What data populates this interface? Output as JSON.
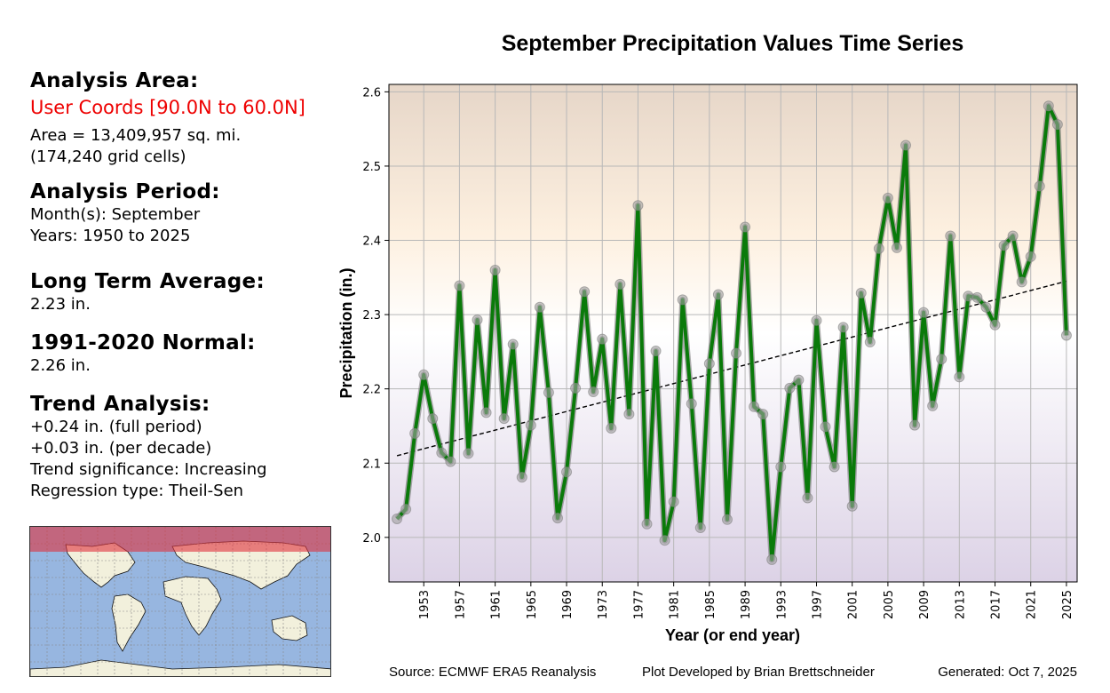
{
  "sidebar": {
    "analysis_area_heading": "Analysis Area:",
    "analysis_area_value": "User Coords [90.0N to 60.0N]",
    "area_line": "Area = 13,409,957 sq. mi.",
    "grid_cells_line": "(174,240 grid cells)",
    "analysis_period_heading": "Analysis Period:",
    "months_line": "Month(s): September",
    "years_line": "Years: 1950 to 2025",
    "long_term_avg_heading": "Long Term Average:",
    "long_term_avg_value": "2.23 in.",
    "normal_heading": "1991-2020 Normal:",
    "normal_value": "2.26 in.",
    "trend_heading": "Trend Analysis:",
    "trend_full": "+0.24 in. (full period)",
    "trend_decade": "+0.03 in. (per decade)",
    "trend_significance": "Trend significance: Increasing",
    "regression_type": "Regression type: Theil-Sen"
  },
  "map": {
    "description": "World map with highlighted region 60N-90N",
    "highlight_color": "#e0606a",
    "ocean_color": "#97b6e0",
    "land_color": "#f2f0dc"
  },
  "footer": {
    "source": "Source: ECMWF ERA5 Reanalysis",
    "developer": "Plot Developed by Brian Brettschneider",
    "generated": "Generated: Oct 7, 2025"
  },
  "colors": {
    "line": "#0a7a0a",
    "marker": "#a0a0a0",
    "trend": "#000000",
    "bg_top": "#e6d6c8",
    "bg_mid_upper": "#fdf0e0",
    "bg_mid": "#ffffff",
    "bg_bottom": "#dcd2e6"
  },
  "chart_data": {
    "type": "line",
    "title": "September Precipitation Values Time Series",
    "xlabel": "Year (or end year)",
    "ylabel": "Precipitation (in.)",
    "xlim": [
      1949.1,
      2026.2
    ],
    "ylim": [
      1.94,
      2.61
    ],
    "yticks": [
      2.0,
      2.1,
      2.2,
      2.3,
      2.4,
      2.5,
      2.6
    ],
    "ytick_labels": [
      "2.0",
      "2.1",
      "2.2",
      "2.3",
      "2.4",
      "2.5",
      "2.6"
    ],
    "xticks": [
      1953,
      1957,
      1961,
      1965,
      1969,
      1973,
      1977,
      1981,
      1985,
      1989,
      1993,
      1997,
      2001,
      2005,
      2009,
      2013,
      2017,
      2021,
      2025
    ],
    "xtick_labels": [
      "1953",
      "1957",
      "1961",
      "1965",
      "1969",
      "1973",
      "1977",
      "1981",
      "1985",
      "1989",
      "1993",
      "1997",
      "2001",
      "2005",
      "2009",
      "2013",
      "2017",
      "2021",
      "2025"
    ],
    "grid": true,
    "x": [
      1950,
      1951,
      1952,
      1953,
      1954,
      1955,
      1956,
      1957,
      1958,
      1959,
      1960,
      1961,
      1962,
      1963,
      1964,
      1965,
      1966,
      1967,
      1968,
      1969,
      1970,
      1971,
      1972,
      1973,
      1974,
      1975,
      1976,
      1977,
      1978,
      1979,
      1980,
      1981,
      1982,
      1983,
      1984,
      1985,
      1986,
      1987,
      1988,
      1989,
      1990,
      1991,
      1992,
      1993,
      1994,
      1995,
      1996,
      1997,
      1998,
      1999,
      2000,
      2001,
      2002,
      2003,
      2004,
      2005,
      2006,
      2007,
      2008,
      2009,
      2010,
      2011,
      2012,
      2013,
      2014,
      2015,
      2016,
      2017,
      2018,
      2019,
      2020,
      2021,
      2022,
      2023,
      2024,
      2025
    ],
    "series": [
      {
        "name": "September precipitation",
        "values": [
          2.025,
          2.038,
          2.14,
          2.219,
          2.16,
          2.114,
          2.102,
          2.339,
          2.113,
          2.293,
          2.168,
          2.36,
          2.16,
          2.26,
          2.081,
          2.151,
          2.31,
          2.195,
          2.026,
          2.088,
          2.201,
          2.331,
          2.196,
          2.267,
          2.147,
          2.341,
          2.166,
          2.447,
          2.018,
          2.251,
          1.996,
          2.048,
          2.32,
          2.18,
          2.013,
          2.234,
          2.327,
          2.024,
          2.248,
          2.418,
          2.176,
          2.166,
          1.97,
          2.095,
          2.201,
          2.212,
          2.053,
          2.292,
          2.149,
          2.095,
          2.283,
          2.042,
          2.329,
          2.263,
          2.389,
          2.457,
          2.39,
          2.528,
          2.151,
          2.303,
          2.177,
          2.24,
          2.406,
          2.216,
          2.325,
          2.323,
          2.31,
          2.286,
          2.393,
          2.406,
          2.344,
          2.378,
          2.473,
          2.581,
          2.556,
          2.272
        ]
      }
    ],
    "trend_line": {
      "name": "Theil-Sen trend",
      "x": [
        1950,
        2025
      ],
      "y": [
        2.11,
        2.345
      ]
    }
  }
}
